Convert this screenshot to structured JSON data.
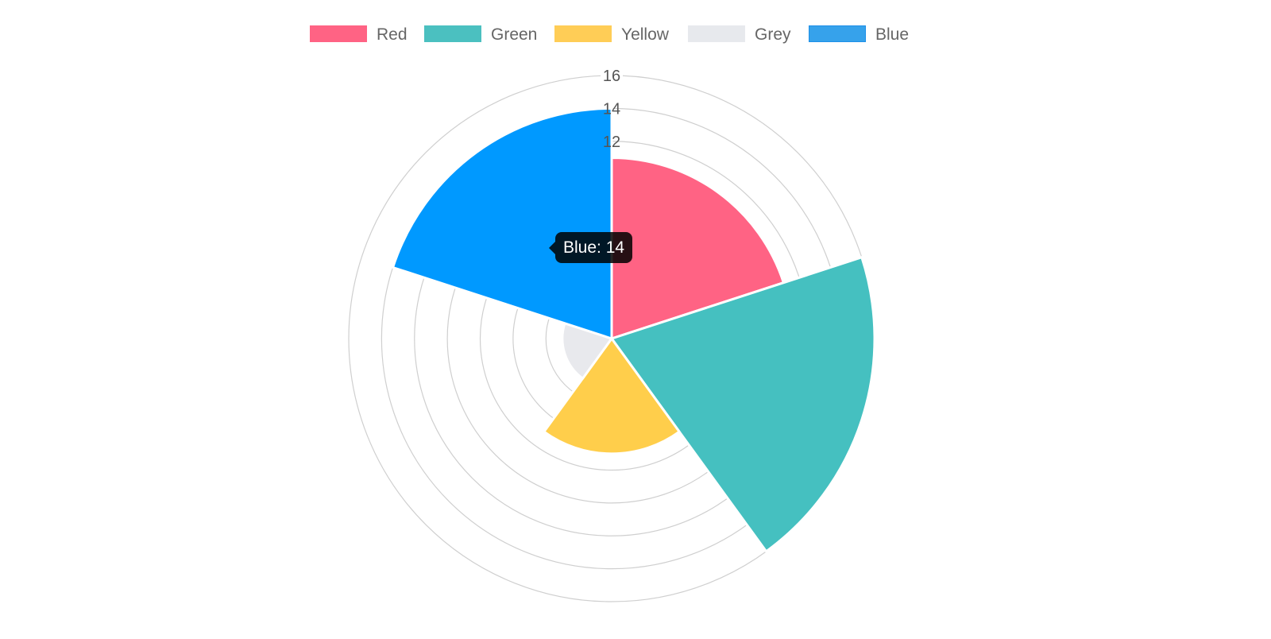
{
  "chart_data": {
    "type": "polarArea",
    "title": "",
    "categories": [
      "Red",
      "Green",
      "Yellow",
      "Grey",
      "Blue"
    ],
    "values": [
      11,
      16,
      7,
      3,
      14
    ],
    "colors": [
      "#ff6384",
      "#4bc0c0",
      "#ffcd56",
      "#e7e9ed",
      "#36a2eb"
    ],
    "segment_colors": [
      "#ff6384",
      "#45c0c0",
      "#ffce4b",
      "#e8e9ed",
      "#0099ff"
    ],
    "r_min": 0,
    "r_max": 16,
    "tick_step": 2,
    "visible_tick_labels": [
      "12",
      "14",
      "16"
    ],
    "grid": true,
    "start_angle_deg": -90,
    "legend_position": "top"
  },
  "tooltip": {
    "text": "Blue: 14",
    "category": "Blue"
  }
}
